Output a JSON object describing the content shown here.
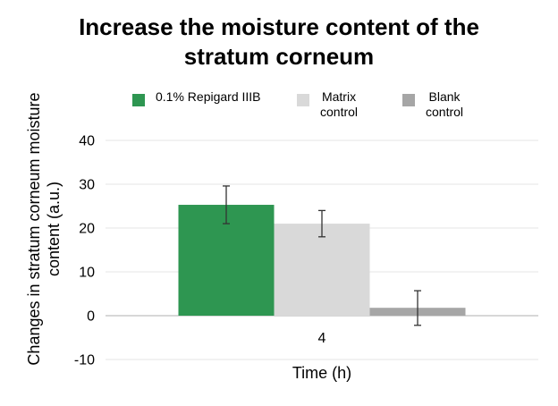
{
  "chart_data": {
    "type": "bar",
    "title": [
      "Increase the moisture content of the",
      "stratum corneum"
    ],
    "xlabel": "Time (h)",
    "ylabel": [
      "Changes in stratum corneum moisture",
      "content (a.u.)"
    ],
    "categories": [
      "4"
    ],
    "ylim": [
      -10,
      40
    ],
    "yticks": [
      -10,
      0,
      10,
      20,
      30,
      40
    ],
    "grid": true,
    "legend_position": "top",
    "series": [
      {
        "name": "0.1% Repigard IIIB",
        "values": [
          25.3
        ],
        "error": [
          [
            21.0,
            29.6
          ]
        ],
        "color": "#2e9651"
      },
      {
        "name": "Matrix\ncontrol",
        "values": [
          21.0
        ],
        "error": [
          [
            18.0,
            24.0
          ]
        ],
        "color": "#d9d9d9"
      },
      {
        "name": "Blank\ncontrol",
        "values": [
          1.8
        ],
        "error": [
          [
            -2.2,
            5.7
          ]
        ],
        "color": "#a6a6a6"
      }
    ]
  }
}
